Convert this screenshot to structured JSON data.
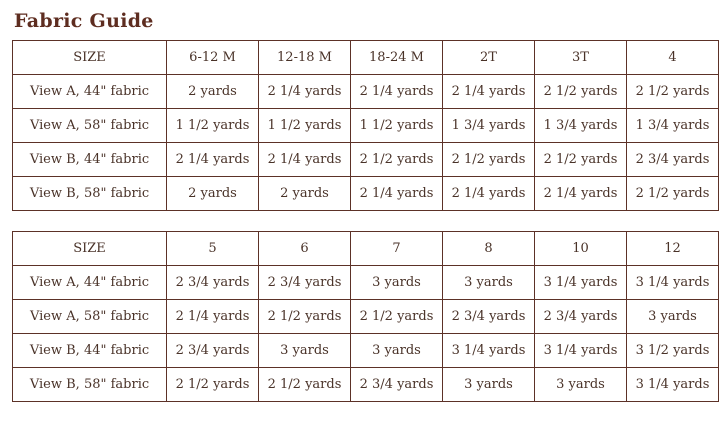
{
  "page_title": "Fabric Guide",
  "colors": {
    "title": "#5e2d20",
    "text": "#493228",
    "border": "#5c3127",
    "background": "#ffffff"
  },
  "tables": [
    {
      "name": "infant-toddler-sizes",
      "headers": [
        "SIZE",
        "6-12 M",
        "12-18 M",
        "18-24 M",
        "2T",
        "3T",
        "4"
      ],
      "rows": [
        {
          "label": "View A, 44\" fabric",
          "values": [
            "2 yards",
            "2 1/4 yards",
            "2 1/4 yards",
            "2 1/4 yards",
            "2 1/2 yards",
            "2 1/2 yards"
          ]
        },
        {
          "label": "View A, 58\" fabric",
          "values": [
            "1 1/2 yards",
            "1 1/2 yards",
            "1 1/2 yards",
            "1 3/4 yards",
            "1 3/4 yards",
            "1 3/4 yards"
          ]
        },
        {
          "label": "View B, 44\" fabric",
          "values": [
            "2 1/4 yards",
            "2 1/4 yards",
            "2 1/2 yards",
            "2 1/2 yards",
            "2 1/2 yards",
            "2 3/4 yards"
          ]
        },
        {
          "label": "View B, 58\" fabric",
          "values": [
            "2 yards",
            "2 yards",
            "2 1/4 yards",
            "2 1/4 yards",
            "2 1/4 yards",
            "2 1/2 yards"
          ]
        }
      ]
    },
    {
      "name": "child-sizes",
      "headers": [
        "SIZE",
        "5",
        "6",
        "7",
        "8",
        "10",
        "12"
      ],
      "rows": [
        {
          "label": "View A, 44\" fabric",
          "values": [
            "2 3/4 yards",
            "2 3/4 yards",
            "3 yards",
            "3 yards",
            "3 1/4 yards",
            "3 1/4 yards"
          ]
        },
        {
          "label": "View A, 58\" fabric",
          "values": [
            "2 1/4 yards",
            "2 1/2 yards",
            "2 1/2 yards",
            "2 3/4 yards",
            "2 3/4 yards",
            "3 yards"
          ]
        },
        {
          "label": "View B, 44\" fabric",
          "values": [
            "2 3/4 yards",
            "3 yards",
            "3 yards",
            "3 1/4 yards",
            "3 1/4 yards",
            "3 1/2 yards"
          ]
        },
        {
          "label": "View B, 58\" fabric",
          "values": [
            "2 1/2 yards",
            "2 1/2 yards",
            "2 3/4 yards",
            "3 yards",
            "3 yards",
            "3 1/4 yards"
          ]
        }
      ]
    }
  ]
}
